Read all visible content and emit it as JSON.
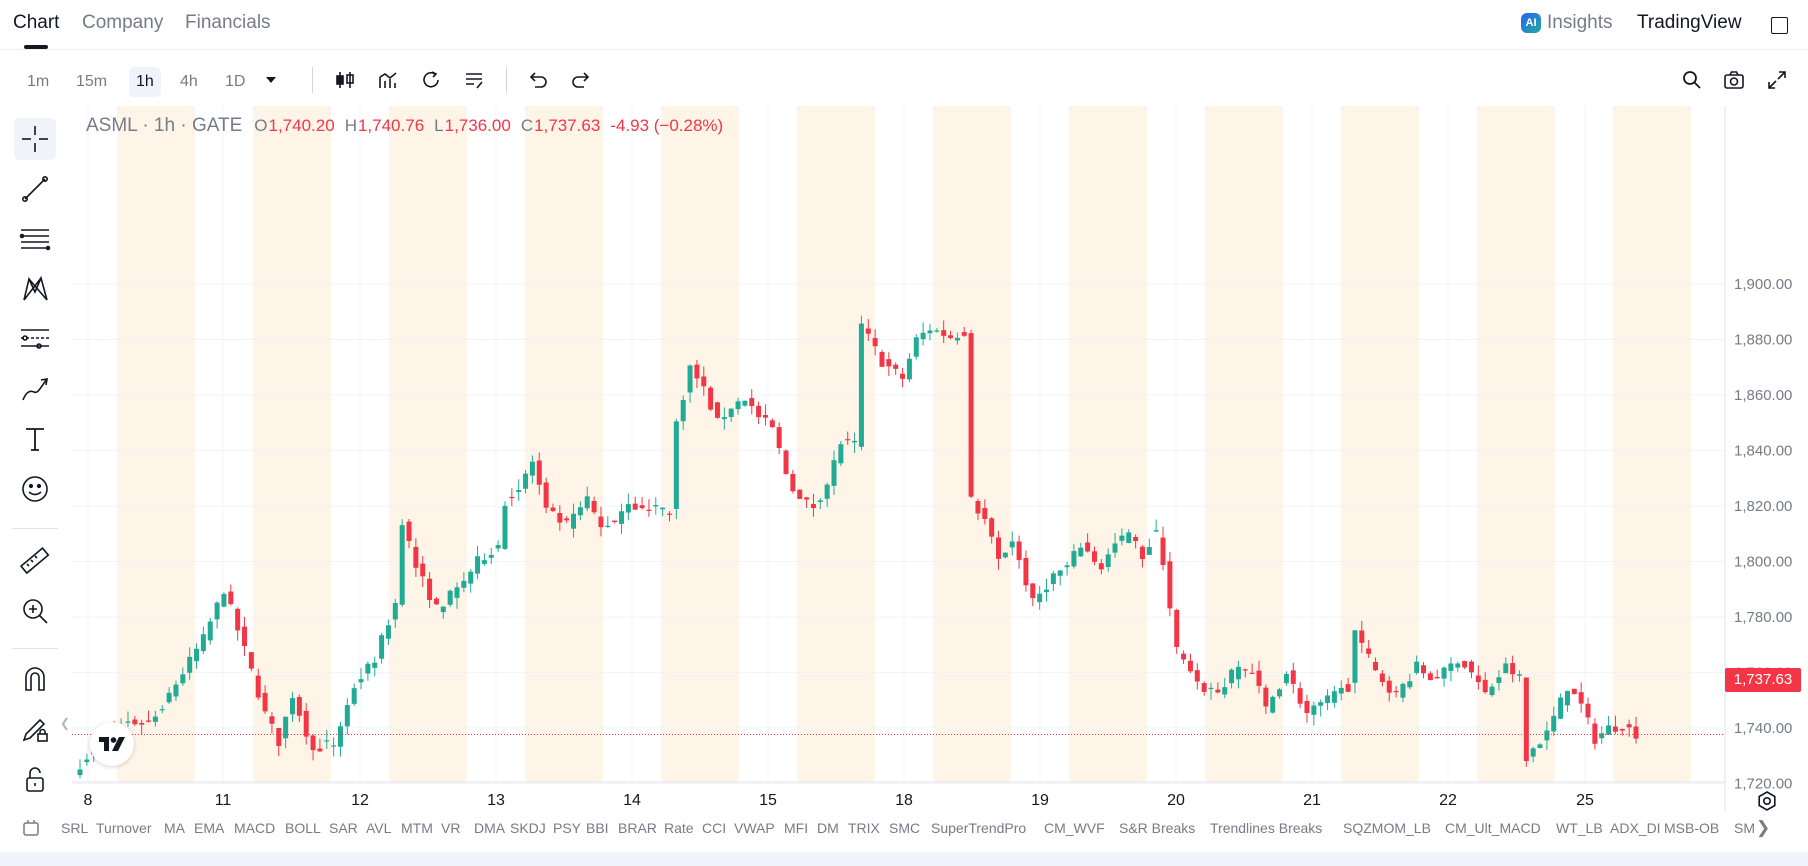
{
  "header": {
    "tabs": [
      {
        "label": "Chart"
      },
      {
        "label": "Company"
      },
      {
        "label": "Financials"
      }
    ],
    "insights_label": "Insights",
    "ai_badge": "AI",
    "brand": "TradingView"
  },
  "toolbar": {
    "intervals": [
      "1m",
      "15m",
      "1h",
      "4h",
      "1D"
    ],
    "active_interval": "1h",
    "icons": [
      "candles-icon",
      "indicators-icon",
      "replay-icon",
      "alerts-list-icon",
      "undo-icon",
      "redo-icon",
      "search-icon",
      "camera-icon",
      "fullscreen-icon"
    ]
  },
  "left_toolbar": {
    "tools": [
      "crosshair-icon",
      "trendline-icon",
      "fib-lines-icon",
      "pattern-icon",
      "forecast-icon",
      "brush-icon",
      "text-icon",
      "emoji-icon",
      "ruler-icon",
      "zoom-in-icon",
      "magnet-icon",
      "lock-draw-icon",
      "unlock-icon"
    ]
  },
  "legend": {
    "symbol": "ASML · 1h · GATE",
    "o_key": "O",
    "open": "1,740.20",
    "h_key": "H",
    "high": "1,740.76",
    "l_key": "L",
    "low": "1,736.00",
    "c_key": "C",
    "close": "1,737.63",
    "change": "-4.93 (−0.28%)"
  },
  "price_tag": "1,737.63",
  "colors": {
    "up": "#22ab94",
    "down": "#f23645",
    "session": "#fff4e8",
    "grid": "#f0f3fa"
  },
  "chart_data": {
    "type": "candlestick",
    "y_ticks": [
      "1,900.00",
      "1,880.00",
      "1,860.00",
      "1,840.00",
      "1,820.00",
      "1,800.00",
      "1,780.00",
      "1,760.00",
      "1,740.00",
      "1,720.00"
    ],
    "y_tick_values": [
      1900,
      1880,
      1860,
      1840,
      1820,
      1800,
      1780,
      1760,
      1740,
      1720
    ],
    "ylim": [
      1705,
      1915
    ],
    "x_ticks": [
      "8",
      "11",
      "12",
      "13",
      "14",
      "15",
      "18",
      "19",
      "20",
      "21",
      "22",
      "25"
    ],
    "last_price": 1737.63,
    "anchors": [
      [
        0,
        1727
      ],
      [
        4,
        1738
      ],
      [
        7,
        1742
      ],
      [
        10,
        1742
      ],
      [
        12,
        1748
      ],
      [
        18,
        1772
      ],
      [
        21,
        1790
      ],
      [
        24,
        1768
      ],
      [
        27,
        1745
      ],
      [
        29,
        1735
      ],
      [
        31,
        1752
      ],
      [
        34,
        1732
      ],
      [
        36,
        1734
      ],
      [
        37,
        1734
      ],
      [
        40,
        1755
      ],
      [
        43,
        1765
      ],
      [
        46,
        1785
      ],
      [
        47,
        1815
      ],
      [
        49,
        1798
      ],
      [
        52,
        1783
      ],
      [
        55,
        1790
      ],
      [
        58,
        1800
      ],
      [
        61,
        1806
      ],
      [
        62,
        1822
      ],
      [
        64,
        1826
      ],
      [
        66,
        1836
      ],
      [
        68,
        1818
      ],
      [
        71,
        1813
      ],
      [
        74,
        1822
      ],
      [
        76,
        1812
      ],
      [
        78,
        1815
      ],
      [
        80,
        1822
      ],
      [
        82,
        1818
      ],
      [
        84,
        1820
      ],
      [
        86,
        1818
      ],
      [
        87,
        1850
      ],
      [
        89,
        1870
      ],
      [
        91,
        1862
      ],
      [
        93,
        1850
      ],
      [
        95,
        1856
      ],
      [
        97,
        1859
      ],
      [
        99,
        1852
      ],
      [
        101,
        1848
      ],
      [
        103,
        1832
      ],
      [
        105,
        1822
      ],
      [
        107,
        1820
      ],
      [
        109,
        1828
      ],
      [
        111,
        1843
      ],
      [
        113,
        1842
      ],
      [
        114,
        1885
      ],
      [
        117,
        1872
      ],
      [
        120,
        1866
      ],
      [
        122,
        1880
      ],
      [
        124,
        1884
      ],
      [
        127,
        1881
      ],
      [
        129,
        1883
      ],
      [
        130,
        1822
      ],
      [
        132,
        1815
      ],
      [
        134,
        1800
      ],
      [
        136,
        1808
      ],
      [
        139,
        1785
      ],
      [
        142,
        1795
      ],
      [
        144,
        1798
      ],
      [
        146,
        1806
      ],
      [
        149,
        1798
      ],
      [
        151,
        1806
      ],
      [
        153,
        1810
      ],
      [
        155,
        1802
      ],
      [
        157,
        1810
      ],
      [
        158,
        1800
      ],
      [
        160,
        1768
      ],
      [
        163,
        1755
      ],
      [
        166,
        1753
      ],
      [
        169,
        1762
      ],
      [
        171,
        1760
      ],
      [
        173,
        1747
      ],
      [
        176,
        1760
      ],
      [
        179,
        1745
      ],
      [
        182,
        1750
      ],
      [
        185,
        1755
      ],
      [
        186,
        1775
      ],
      [
        189,
        1760
      ],
      [
        192,
        1752
      ],
      [
        195,
        1762
      ],
      [
        197,
        1758
      ],
      [
        199,
        1760
      ],
      [
        201,
        1765
      ],
      [
        203,
        1760
      ],
      [
        205,
        1752
      ],
      [
        208,
        1762
      ],
      [
        210,
        1758
      ],
      [
        211,
        1730
      ],
      [
        214,
        1738
      ],
      [
        217,
        1755
      ],
      [
        219,
        1748
      ],
      [
        221,
        1736
      ],
      [
        223,
        1740
      ],
      [
        225,
        1741
      ],
      [
        227,
        1738
      ]
    ]
  },
  "bottom_bar": {
    "indicators": [
      "SRL",
      "Turnover",
      "MA",
      "EMA",
      "MACD",
      "BOLL",
      "SAR",
      "AVL",
      "MTM",
      "VR",
      "DMA",
      "SKDJ",
      "PSY",
      "BBI",
      "BRAR",
      "Rate",
      "CCI",
      "VWAP",
      "MFI",
      "DM",
      "TRIX",
      "SMC",
      "SuperTrendPro",
      "CM_WVF",
      "S&R Breaks",
      "Trendlines Breaks",
      "SQZMOM_LB",
      "CM_Ult_MACD",
      "WT_LB",
      "ADX_DI",
      "MSB-OB",
      "SM"
    ]
  }
}
